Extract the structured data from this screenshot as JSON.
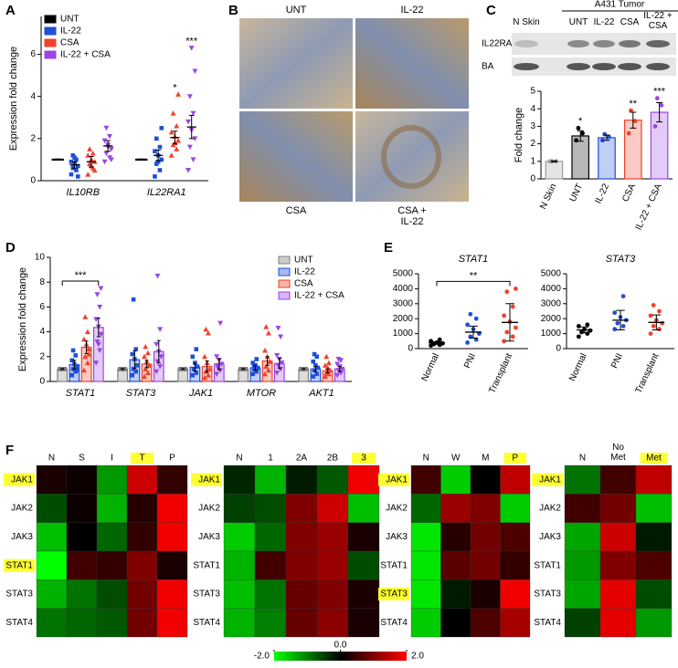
{
  "panel_labels": [
    "A",
    "B",
    "C",
    "D",
    "E",
    "F"
  ],
  "images": {
    "labels": [
      [
        "UNT"
      ],
      [
        "IL-22"
      ],
      [
        "CSA"
      ],
      [
        "CSA +",
        "IL-22"
      ]
    ]
  },
  "blot": {
    "group_label": "A431 Tumor",
    "lanes": [
      [
        "N Skin"
      ],
      [
        "UNT"
      ],
      [
        "IL-22"
      ],
      [
        "CSA"
      ],
      [
        "IL-22 +",
        "CSA"
      ]
    ],
    "rows": [
      "IL22RA",
      "BA"
    ]
  },
  "chart_data": [
    {
      "type": "dot",
      "y_label": "Expression fold change",
      "categories": [
        "IL10RB",
        "IL22RA1"
      ],
      "ylim": [
        0,
        7.8
      ],
      "yticks": [
        0,
        2,
        4,
        6
      ],
      "legend": "upper left",
      "series": [
        {
          "name": "UNT",
          "color": "#000000",
          "marker": "dash",
          "values": [
            1,
            1
          ],
          "errors": [
            0,
            0
          ],
          "points": [
            [
              1,
              1,
              1,
              1,
              1,
              1,
              1,
              1,
              1,
              1
            ],
            [
              1,
              1,
              1,
              1,
              1,
              1,
              1,
              1,
              1,
              1
            ]
          ]
        },
        {
          "name": "IL-22",
          "color": "#1f4fd6",
          "marker": "square",
          "values": [
            0.75,
            1.2
          ],
          "errors": [
            0.15,
            0.25
          ],
          "points": [
            [
              0.3,
              0.5,
              0.6,
              0.7,
              0.8,
              0.9,
              1.0,
              1.2,
              0.2,
              1.1
            ],
            [
              0.2,
              0.5,
              0.8,
              1.0,
              1.2,
              1.4,
              1.6,
              2.0,
              2.5,
              0.9
            ]
          ]
        },
        {
          "name": "CSA",
          "color": "#f0412b",
          "marker": "triangle",
          "values": [
            0.9,
            2.05
          ],
          "errors": [
            0.25,
            0.3
          ],
          "points": [
            [
              0.3,
              0.6,
              0.8,
              0.9,
              1.0,
              1.2,
              1.3,
              1.5,
              0.5,
              0.7
            ],
            [
              1.2,
              1.5,
              1.7,
              1.9,
              2.1,
              2.3,
              2.6,
              3.2,
              4.1,
              1.8
            ]
          ],
          "significance": [
            null,
            "*"
          ]
        },
        {
          "name": "IL-22 + CSA",
          "color": "#9b45e4",
          "marker": "triangle-down",
          "values": [
            1.65,
            2.55
          ],
          "errors": [
            0.25,
            0.55
          ],
          "points": [
            [
              0.9,
              1.1,
              1.3,
              1.5,
              1.7,
              1.9,
              2.1,
              2.5,
              1.0,
              1.6
            ],
            [
              0.5,
              1.0,
              1.6,
              2.0,
              2.4,
              2.8,
              3.2,
              4.0,
              5.2,
              6.3
            ]
          ],
          "significance": [
            null,
            "***"
          ]
        }
      ]
    },
    {
      "type": "bar",
      "y_label": "Fold change",
      "categories": [
        "N Skin",
        "UNT",
        "IL-22",
        "CSA",
        "IL-22 + CSA"
      ],
      "ylim": [
        0,
        5
      ],
      "yticks": [
        0,
        1,
        2,
        3,
        4,
        5
      ],
      "series": [
        {
          "colors": [
            "#9e9e9e",
            "#000000",
            "#1f4fd6",
            "#f0412b",
            "#9b45e4"
          ],
          "marker": "circle",
          "values": [
            1,
            2.45,
            2.35,
            3.35,
            3.8
          ],
          "errors": [
            0.03,
            0.3,
            0.15,
            0.45,
            0.55
          ],
          "points": [
            [
              1,
              1,
              1
            ],
            [
              2.2,
              2.6,
              2.9
            ],
            [
              2.2,
              2.4,
              2.55
            ],
            [
              2.6,
              3.3,
              3.9
            ],
            [
              3.0,
              4.2,
              4.6
            ]
          ],
          "significance": [
            null,
            "*",
            null,
            "**",
            "***"
          ]
        }
      ]
    },
    {
      "type": "bar",
      "y_label": "Expression fold change",
      "categories": [
        "STAT1",
        "STAT3",
        "JAK1",
        "MTOR",
        "AKT1"
      ],
      "ylim": [
        0,
        10
      ],
      "yticks": [
        0,
        2,
        4,
        6,
        8,
        10
      ],
      "legend": "upper right",
      "brackets": [
        {
          "label": "***",
          "category": "STAT1",
          "from": "UNT",
          "to": "IL-22 + CSA"
        }
      ],
      "series": [
        {
          "name": "UNT",
          "color": "#808080",
          "marker": "square",
          "values": [
            1,
            1,
            1,
            1,
            1
          ],
          "errors": [
            0.03,
            0.03,
            0.03,
            0.03,
            0.03
          ],
          "points": [
            [
              1,
              1,
              1,
              1,
              1,
              1,
              1,
              1
            ],
            [
              1,
              1,
              1,
              1,
              1,
              1,
              1,
              1
            ],
            [
              1,
              1,
              1,
              1,
              1,
              1,
              1,
              1
            ],
            [
              1,
              1,
              1,
              1,
              1,
              1,
              1,
              1
            ],
            [
              1,
              1,
              1,
              1,
              1,
              1,
              1,
              1
            ]
          ]
        },
        {
          "name": "IL-22",
          "color": "#1f4fd6",
          "marker": "square",
          "values": [
            1.35,
            1.75,
            1.15,
            1.1,
            1.0
          ],
          "errors": [
            0.35,
            0.7,
            0.3,
            0.2,
            0.2
          ],
          "points": [
            [
              0.5,
              0.8,
              1.0,
              1.2,
              1.4,
              1.7,
              2.1,
              2.5,
              0.9
            ],
            [
              0.5,
              0.8,
              1.0,
              1.3,
              1.8,
              2.2,
              2.6,
              6.6
            ],
            [
              0.5,
              0.7,
              1.0,
              1.2,
              1.5,
              2.0,
              2.6
            ],
            [
              0.6,
              0.8,
              1.0,
              1.1,
              1.3,
              1.5,
              1.8,
              1.2
            ],
            [
              0.4,
              0.6,
              0.9,
              1.1,
              1.3,
              1.6,
              2.0,
              2.2
            ]
          ]
        },
        {
          "name": "CSA",
          "color": "#f0412b",
          "marker": "triangle",
          "values": [
            2.75,
            1.4,
            1.2,
            1.65,
            0.85
          ],
          "errors": [
            0.5,
            0.3,
            0.45,
            0.35,
            0.15
          ],
          "points": [
            [
              0.9,
              1.5,
              2.0,
              2.6,
              3.0,
              3.4,
              4.0,
              5.2,
              2.2
            ],
            [
              0.4,
              0.7,
              1.0,
              1.3,
              1.6,
              2.0,
              2.3,
              2.8
            ],
            [
              0.3,
              0.5,
              0.8,
              1.0,
              1.5,
              2.0,
              3.9,
              4.2
            ],
            [
              0.6,
              0.9,
              1.2,
              1.6,
              2.0,
              2.5,
              3.9,
              4.4
            ],
            [
              0.4,
              0.6,
              0.7,
              0.9,
              1.1,
              1.3,
              1.5,
              2.0
            ]
          ]
        },
        {
          "name": "IL-22 + CSA",
          "color": "#9b45e4",
          "marker": "triangle-down",
          "values": [
            4.35,
            2.4,
            1.4,
            1.45,
            1.0
          ],
          "errors": [
            0.75,
            0.9,
            0.45,
            0.4,
            0.2
          ],
          "points": [
            [
              1.5,
              2.5,
              3.2,
              3.8,
              4.4,
              5.0,
              6.0,
              7.0,
              7.5,
              3.0
            ],
            [
              0.8,
              1.2,
              1.6,
              2.0,
              2.4,
              3.0,
              4.2,
              8.5
            ],
            [
              0.6,
              0.9,
              1.1,
              1.4,
              1.7,
              2.0,
              4.7,
              1.3
            ],
            [
              0.7,
              1.0,
              1.3,
              1.5,
              1.8,
              2.1,
              3.6,
              4.3
            ],
            [
              0.5,
              0.7,
              0.9,
              1.0,
              1.2,
              1.4,
              1.7,
              1.8
            ]
          ]
        }
      ]
    },
    {
      "type": "dot",
      "title": "STAT1",
      "categories": [
        "Normal",
        "PNI",
        "Transplant"
      ],
      "ylim": [
        0,
        5000
      ],
      "yticks": [
        0,
        1000,
        2000,
        3000,
        4000,
        5000
      ],
      "brackets": [
        {
          "label": "**",
          "from": "Normal",
          "to": "Transplant"
        }
      ],
      "series": [
        {
          "colors": [
            "#000000",
            "#1f4fd6",
            "#f0412b"
          ],
          "marker": "circle",
          "values": [
            380,
            1100,
            1750
          ],
          "errors": [
            80,
            400,
            1250
          ],
          "points": [
            [
              200,
              250,
              300,
              350,
              400,
              500,
              600
            ],
            [
              400,
              600,
              800,
              1000,
              1300,
              1600,
              2000,
              2300
            ],
            [
              500,
              800,
              1100,
              1400,
              1800,
              2200,
              2800,
              3800,
              4000
            ]
          ]
        }
      ]
    },
    {
      "type": "dot",
      "title": "STAT3",
      "categories": [
        "Normal",
        "PNI",
        "Transplant"
      ],
      "ylim": [
        0,
        5000
      ],
      "yticks": [
        0,
        1000,
        2000,
        3000,
        4000,
        5000
      ],
      "series": [
        {
          "colors": [
            "#000000",
            "#1f4fd6",
            "#f0412b"
          ],
          "marker": "circle",
          "values": [
            1250,
            1900,
            1750
          ],
          "errors": [
            200,
            650,
            500
          ],
          "points": [
            [
              800,
              1000,
              1100,
              1200,
              1300,
              1500,
              1600
            ],
            [
              1300,
              1500,
              1700,
              1900,
              2100,
              2400,
              3500
            ],
            [
              1000,
              1300,
              1500,
              1700,
              1900,
              2200,
              2500,
              2900
            ]
          ]
        }
      ]
    },
    {
      "type": "heatmap",
      "columns": [
        "N",
        "S",
        "I",
        "T",
        "P"
      ],
      "rows": [
        "JAK1",
        "JAK2",
        "JAK3",
        "STAT1",
        "STAT3",
        "STAT4"
      ],
      "highlight_columns": [
        "T"
      ],
      "highlight_rows": [
        "JAK1",
        "STAT1"
      ],
      "values": [
        [
          0.2,
          0.1,
          -1.2,
          1.6,
          0.4
        ],
        [
          -0.6,
          0.1,
          -1.4,
          0.3,
          1.9
        ],
        [
          -1.5,
          0,
          -0.8,
          0.4,
          1.9
        ],
        [
          -2.0,
          0.5,
          0.4,
          1.0,
          0.2
        ],
        [
          -1.4,
          -0.9,
          -0.6,
          0.9,
          1.9
        ],
        [
          -0.9,
          -0.8,
          -0.7,
          0.9,
          1.9
        ]
      ]
    },
    {
      "type": "heatmap",
      "columns": [
        "N",
        "1",
        "2A",
        "2B",
        "3"
      ],
      "rows": [
        "JAK1",
        "JAK2",
        "JAK3",
        "STAT1",
        "STAT3",
        "STAT4"
      ],
      "highlight_columns": [
        "3"
      ],
      "highlight_rows": [
        "JAK1"
      ],
      "values": [
        [
          -0.3,
          -1.4,
          -0.2,
          -0.7,
          1.9
        ],
        [
          -0.5,
          -0.6,
          1.0,
          1.6,
          -1.5
        ],
        [
          -1.6,
          -0.8,
          1.0,
          1.2,
          0.2
        ],
        [
          -1.4,
          0.5,
          1.0,
          1.2,
          -0.6
        ],
        [
          -1.5,
          -0.9,
          0.8,
          1.0,
          0.2
        ],
        [
          -1.4,
          -1.0,
          0.8,
          1.1,
          0.2
        ]
      ]
    },
    {
      "type": "heatmap",
      "columns": [
        "N",
        "W",
        "M",
        "P"
      ],
      "rows": [
        "JAK1",
        "JAK2",
        "JAK3",
        "STAT1",
        "STAT3",
        "STAT4"
      ],
      "highlight_columns": [
        "P"
      ],
      "highlight_rows": [
        "JAK1",
        "STAT3"
      ],
      "values": [
        [
          0.5,
          -1.6,
          0.0,
          1.5
        ],
        [
          -0.8,
          1.2,
          1.0,
          -1.6
        ],
        [
          -1.8,
          0.3,
          0.9,
          0.6
        ],
        [
          -1.8,
          0.7,
          0.9,
          0.4
        ],
        [
          -1.8,
          -0.2,
          0.2,
          1.9
        ],
        [
          -1.6,
          0.0,
          0.6,
          1.3
        ]
      ]
    },
    {
      "type": "heatmap",
      "columns": [
        "N",
        [
          "No",
          "Met"
        ],
        "Met"
      ],
      "rows": [
        "JAK1",
        "JAK2",
        "JAK3",
        "STAT1",
        "STAT3",
        "STAT4"
      ],
      "highlight_columns": [
        "Met"
      ],
      "highlight_rows": [
        "JAK1"
      ],
      "values": [
        [
          -0.9,
          0.5,
          1.5
        ],
        [
          0.5,
          0.9,
          -1.5
        ],
        [
          -1.3,
          1.6,
          -0.2
        ],
        [
          -1.2,
          1.0,
          0.6
        ],
        [
          -1.3,
          1.8,
          -0.6
        ],
        [
          -0.5,
          1.8,
          -1.2
        ]
      ]
    },
    {
      "type": "colorbar",
      "zlim": [
        -2,
        2
      ],
      "zticks": [
        {
          "value": -2,
          "label": "-2.0"
        },
        {
          "value": 0,
          "label": "0.0"
        },
        {
          "value": 2,
          "label": "2.0"
        }
      ],
      "colors": [
        "#00ff00",
        "#000000",
        "#ff0000"
      ]
    }
  ]
}
